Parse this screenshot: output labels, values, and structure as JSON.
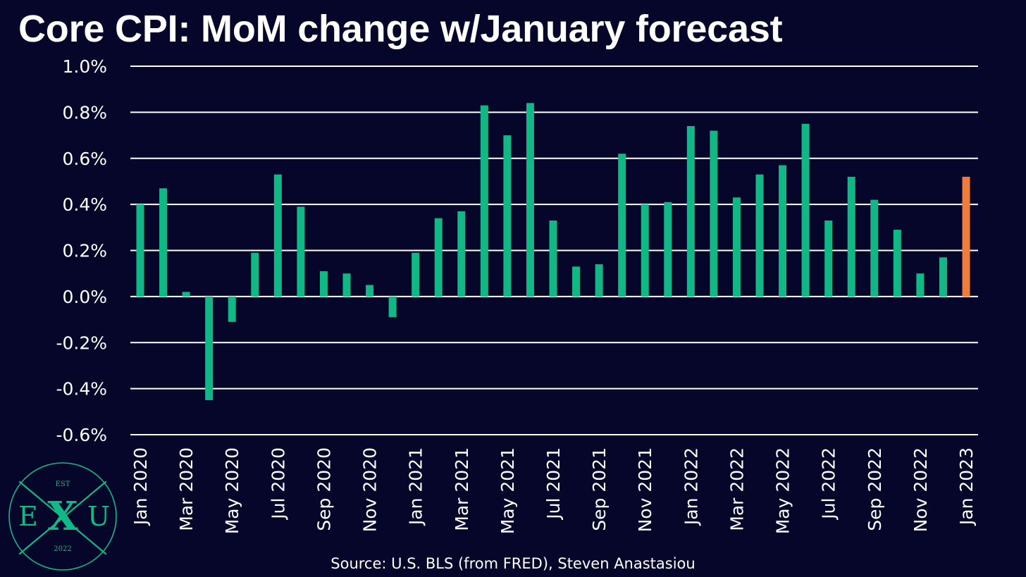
{
  "colors": {
    "background": "#05062a",
    "actual_bar": "#11b886",
    "forecast_bar": "#f07b3a",
    "grid": "#ffffff",
    "text": "#ffffff",
    "logo": "#12b886"
  },
  "logo": {
    "top_text": "EST",
    "left_letter": "E",
    "center_letter": "X",
    "right_letter": "U",
    "bottom_text": "2022"
  },
  "chart_data": {
    "type": "bar",
    "title": "Core CPI: MoM change w/January forecast",
    "source": "Source: U.S. BLS (from FRED), Steven Anastasiou",
    "xlabel": "",
    "ylabel": "",
    "ylim": [
      -0.6,
      1.0
    ],
    "y_ticks": [
      1.0,
      0.8,
      0.6,
      0.4,
      0.2,
      0.0,
      -0.2,
      -0.4,
      -0.6
    ],
    "y_tick_labels": [
      "1.0%",
      "0.8%",
      "0.6%",
      "0.4%",
      "0.2%",
      "0.0%",
      "-0.2%",
      "-0.4%",
      "-0.6%"
    ],
    "grid": "horizontal",
    "x_tick_labels": [
      "Jan 2020",
      "Mar 2020",
      "May 2020",
      "Jul 2020",
      "Sep 2020",
      "Nov 2020",
      "Jan 2021",
      "Mar 2021",
      "May 2021",
      "Jul 2021",
      "Sep 2021",
      "Nov 2021",
      "Jan 2022",
      "Mar 2022",
      "May 2022",
      "Jul 2022",
      "Sep 2022",
      "Nov 2022",
      "Jan 2023"
    ],
    "categories": [
      "Jan 2020",
      "Feb 2020",
      "Mar 2020",
      "Apr 2020",
      "May 2020",
      "Jun 2020",
      "Jul 2020",
      "Aug 2020",
      "Sep 2020",
      "Oct 2020",
      "Nov 2020",
      "Dec 2020",
      "Jan 2021",
      "Feb 2021",
      "Mar 2021",
      "Apr 2021",
      "May 2021",
      "Jun 2021",
      "Jul 2021",
      "Aug 2021",
      "Sep 2021",
      "Oct 2021",
      "Nov 2021",
      "Dec 2021",
      "Jan 2022",
      "Feb 2022",
      "Mar 2022",
      "Apr 2022",
      "May 2022",
      "Jun 2022",
      "Jul 2022",
      "Aug 2022",
      "Sep 2022",
      "Oct 2022",
      "Nov 2022",
      "Dec 2022",
      "Jan 2023"
    ],
    "values": [
      0.4,
      0.47,
      0.02,
      -0.45,
      -0.11,
      0.19,
      0.53,
      0.39,
      0.11,
      0.1,
      0.05,
      -0.09,
      0.19,
      0.34,
      0.37,
      0.83,
      0.7,
      0.84,
      0.33,
      0.13,
      0.14,
      0.62,
      0.4,
      0.41,
      0.74,
      0.72,
      0.43,
      0.53,
      0.57,
      0.75,
      0.33,
      0.52,
      0.42,
      0.29,
      0.1,
      0.17,
      0.52
    ],
    "forecast_index": 36
  }
}
